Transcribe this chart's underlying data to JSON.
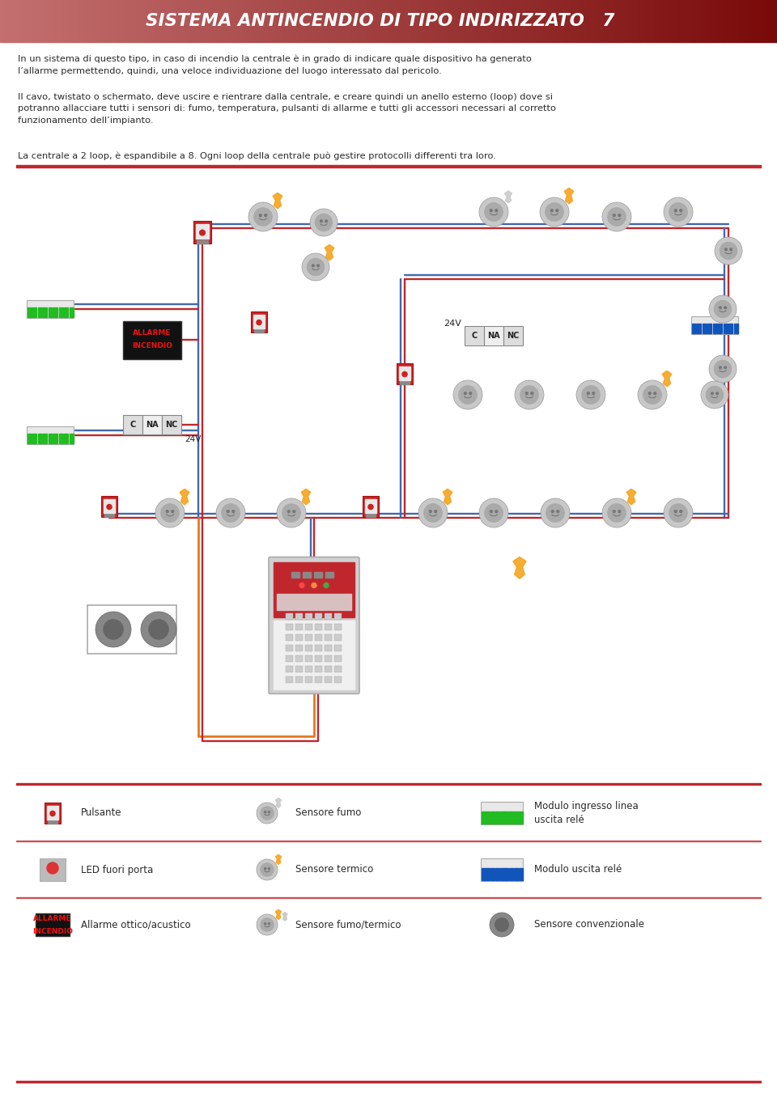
{
  "title": "SISTEMA ANTINCENDIO DI TIPO INDIRIZZATO",
  "page_number": "7",
  "title_text_color": "#FFFFFF",
  "body_bg_color": "#FFFFFF",
  "text_color": "#2A2A2A",
  "red_color": "#C0272D",
  "wire_red": "#C0272D",
  "wire_blue": "#4169B0",
  "wire_orange": "#E8781E",
  "paragraph1": "In un sistema di questo tipo, in caso di incendio la centrale è in grado di indicare quale dispositivo ha generato\nl’allarme permettendo, quindi, una veloce individuazione del luogo interessato dal pericolo.",
  "paragraph2": "Il cavo, twistato o schermato, deve uscire e rientrare dalla centrale, e creare quindi un anello esterno (loop) dove si\npotranno allacciare tutti i sensori di: fumo, temperatura, pulsanti di allarme e tutti gli accessori necessari al corretto\nfunzionamento dell’impianto.",
  "paragraph3": "La centrale a 2 loop, è espandibile a 8. Ogni loop della centrale può gestire protocolli differenti tra loro."
}
